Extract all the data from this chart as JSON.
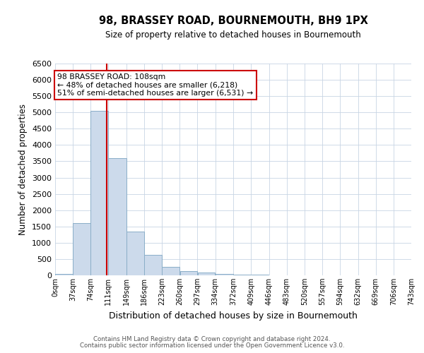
{
  "title": "98, BRASSEY ROAD, BOURNEMOUTH, BH9 1PX",
  "subtitle": "Size of property relative to detached houses in Bournemouth",
  "xlabel": "Distribution of detached houses by size in Bournemouth",
  "ylabel": "Number of detached properties",
  "footer_line1": "Contains HM Land Registry data © Crown copyright and database right 2024.",
  "footer_line2": "Contains public sector information licensed under the Open Government Licence v3.0.",
  "bar_color": "#ccdaeb",
  "bar_edge_color": "#8aaec8",
  "grid_color": "#c8d4e4",
  "vline_color": "#cc0000",
  "annotation_text_line1": "98 BRASSEY ROAD: 108sqm",
  "annotation_text_line2": "← 48% of detached houses are smaller (6,218)",
  "annotation_text_line3": "51% of semi-detached houses are larger (6,531) →",
  "annotation_box_color": "#cc0000",
  "property_size": 108,
  "bin_edges": [
    0,
    37,
    74,
    111,
    149,
    186,
    223,
    260,
    297,
    334,
    372,
    409,
    446,
    483,
    520,
    557,
    594,
    632,
    669,
    706,
    743
  ],
  "bin_labels": [
    "0sqm",
    "37sqm",
    "74sqm",
    "111sqm",
    "149sqm",
    "186sqm",
    "223sqm",
    "260sqm",
    "297sqm",
    "334sqm",
    "372sqm",
    "409sqm",
    "446sqm",
    "483sqm",
    "520sqm",
    "557sqm",
    "594sqm",
    "632sqm",
    "669sqm",
    "706sqm",
    "743sqm"
  ],
  "counts": [
    50,
    1600,
    5050,
    3600,
    1350,
    620,
    270,
    130,
    80,
    50,
    15,
    30,
    5,
    0,
    0,
    0,
    0,
    0,
    0,
    0
  ],
  "ylim": [
    0,
    6500
  ],
  "yticks": [
    0,
    500,
    1000,
    1500,
    2000,
    2500,
    3000,
    3500,
    4000,
    4500,
    5000,
    5500,
    6000,
    6500
  ],
  "background_color": "#ffffff",
  "plot_bg_color": "#ffffff"
}
